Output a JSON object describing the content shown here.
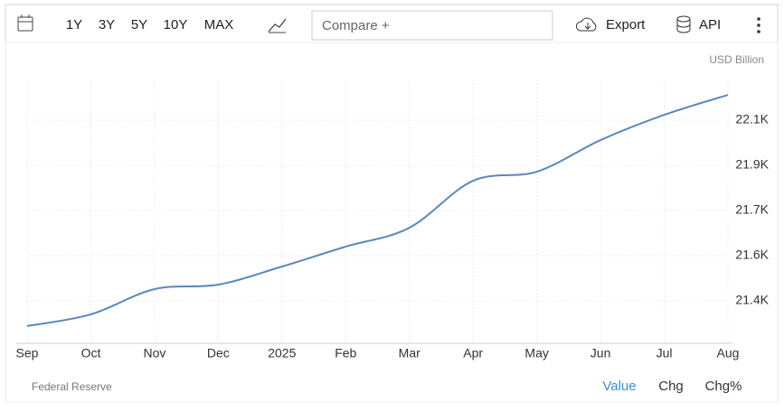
{
  "toolbar": {
    "ranges": [
      "1Y",
      "3Y",
      "5Y",
      "10Y",
      "MAX"
    ],
    "compare": "Compare +",
    "export": "Export",
    "api": "API"
  },
  "chart_data": {
    "type": "line",
    "unit": "USD Billion",
    "categories": [
      "Sep",
      "Oct",
      "Nov",
      "Dec",
      "2025",
      "Feb",
      "Mar",
      "Apr",
      "May",
      "Jun",
      "Jul",
      "Aug"
    ],
    "series": [
      {
        "name": "Value",
        "color": "#5b87bb",
        "values": [
          21305,
          21349,
          21444,
          21461,
          21529,
          21604,
          21675,
          21852,
          21886,
          22005,
          22100,
          22175
        ]
      }
    ],
    "ylim": [
      21240,
      22233
    ],
    "yticks": [
      {
        "value": 21400,
        "label": "21.4K"
      },
      {
        "value": 21570,
        "label": "21.6K"
      },
      {
        "value": 21740,
        "label": "21.7K"
      },
      {
        "value": 21910,
        "label": "21.9K"
      },
      {
        "value": 22080,
        "label": "22.1K"
      }
    ],
    "grid": true
  },
  "footer": {
    "source": "Federal Reserve",
    "tabs": [
      "Value",
      "Chg",
      "Chg%"
    ]
  }
}
